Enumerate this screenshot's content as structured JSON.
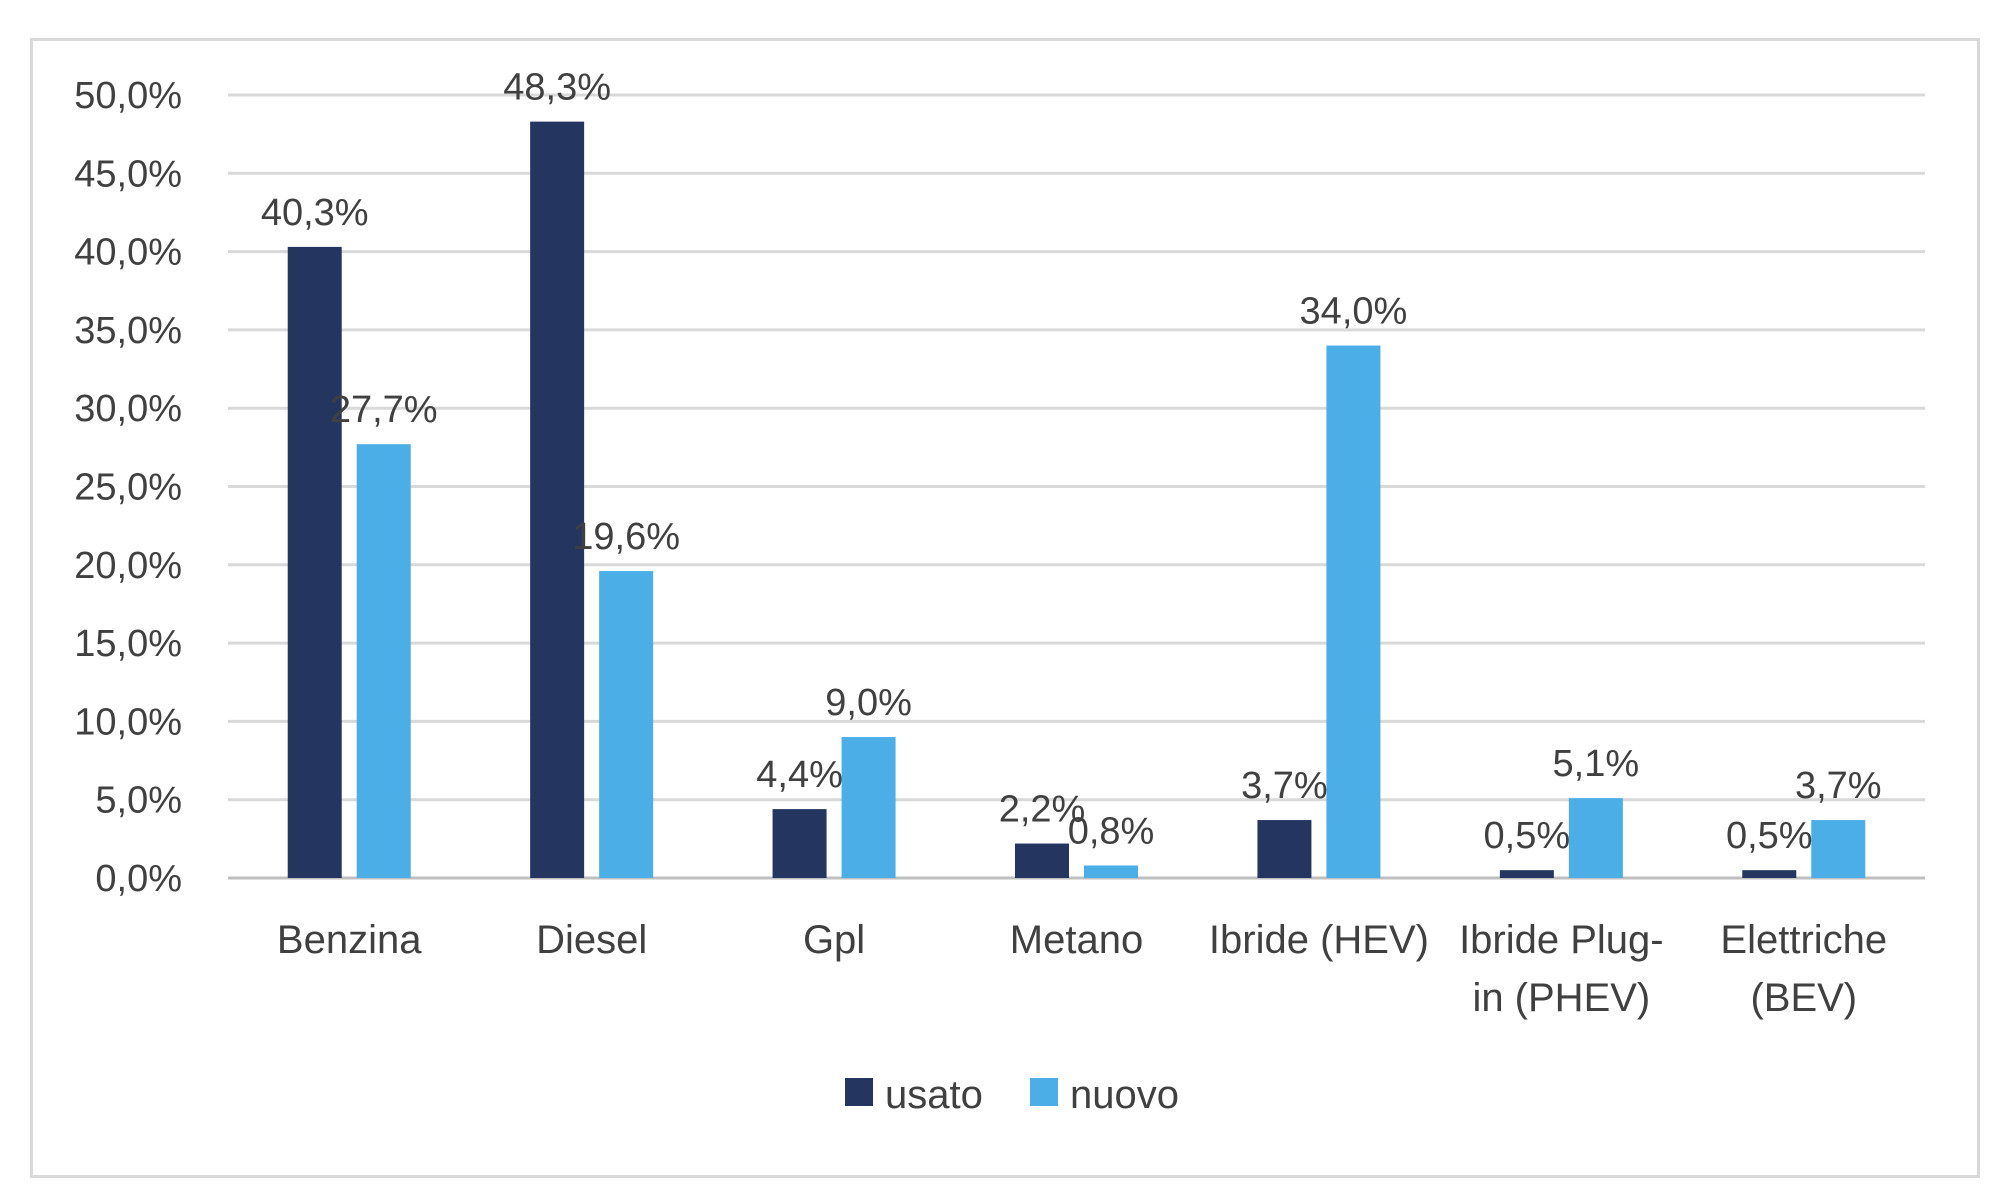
{
  "chart_data": {
    "type": "bar",
    "categories": [
      [
        "Benzina"
      ],
      [
        "Diesel"
      ],
      [
        "Gpl"
      ],
      [
        "Metano"
      ],
      [
        "Ibride (HEV)"
      ],
      [
        "Ibride Plug-",
        "in  (PHEV)"
      ],
      [
        "Elettriche",
        "(BEV)"
      ]
    ],
    "series": [
      {
        "name": "usato",
        "color": "#243660",
        "values": [
          40.3,
          48.3,
          4.4,
          2.2,
          3.7,
          0.5,
          0.5
        ],
        "labels": [
          "40,3%",
          "48,3%",
          "4,4%",
          "2,2%",
          "3,7%",
          "0,5%",
          "0,5%"
        ]
      },
      {
        "name": "nuovo",
        "color": "#4caee6",
        "values": [
          27.7,
          19.6,
          9.0,
          0.8,
          34.0,
          5.1,
          3.7
        ],
        "labels": [
          "27,7%",
          "19,6%",
          "9,0%",
          "0,8%",
          "34,0%",
          "5,1%",
          "3,7%"
        ]
      }
    ],
    "yticks": [
      0,
      5,
      10,
      15,
      20,
      25,
      30,
      35,
      40,
      45,
      50
    ],
    "ytick_labels": [
      "0,0%",
      "5,0%",
      "10,0%",
      "15,0%",
      "20,0%",
      "25,0%",
      "30,0%",
      "35,0%",
      "40,0%",
      "45,0%",
      "50,0%"
    ],
    "ylim": [
      0,
      50
    ],
    "grid": true,
    "gridline_color": "#d9d9d9",
    "legend_position": "bottom",
    "title": "",
    "xlabel": "",
    "ylabel": ""
  }
}
